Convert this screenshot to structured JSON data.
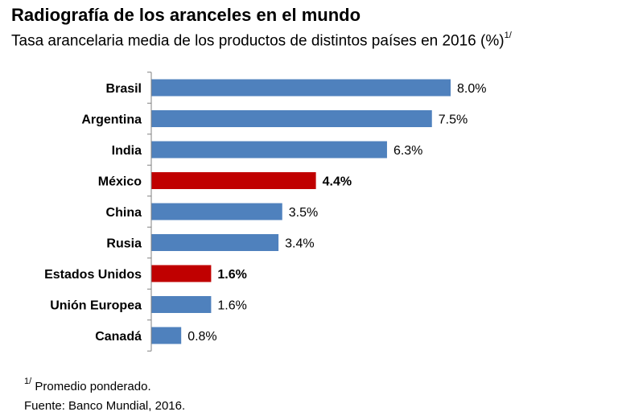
{
  "chart_data": {
    "type": "bar",
    "orientation": "horizontal",
    "title": "Radiografía de los aranceles en el mundo",
    "subtitle": "Tasa arancelaria media de los productos de distintos países en 2016 (%)",
    "subtitle_footnote_ref": "1/",
    "categories": [
      "Brasil",
      "Argentina",
      "India",
      "México",
      "China",
      "Rusia",
      "Estados Unidos",
      "Unión Europea",
      "Canadá"
    ],
    "values": [
      8.0,
      7.5,
      6.3,
      4.4,
      3.5,
      3.4,
      1.6,
      1.6,
      0.8
    ],
    "value_labels": [
      "8.0%",
      "7.5%",
      "6.3%",
      "4.4%",
      "3.5%",
      "3.4%",
      "1.6%",
      "1.6%",
      "0.8%"
    ],
    "highlighted": [
      false,
      false,
      false,
      true,
      false,
      false,
      true,
      false,
      false
    ],
    "xlim": [
      0,
      8.0
    ],
    "xlabel": "",
    "ylabel": "",
    "grid": false,
    "colors": {
      "default": "#4f81bd",
      "highlight": "#c00000"
    }
  },
  "notes": {
    "footnote_marker": "1/",
    "footnote_text": "Promedio ponderado.",
    "source": "Fuente: Banco Mundial, 2016."
  }
}
